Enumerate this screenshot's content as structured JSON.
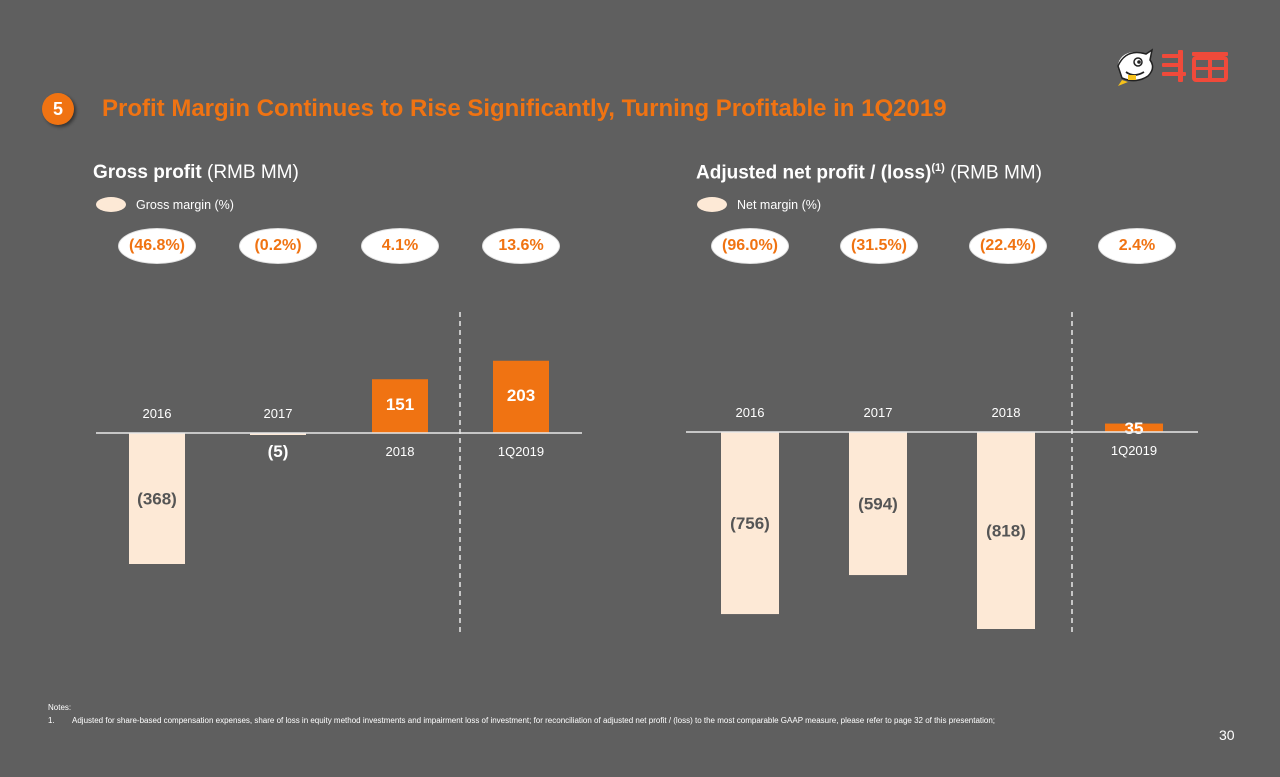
{
  "header": {
    "section_number": "5",
    "headline": "Profit Margin Continues to Rise Significantly, Turning Profitable in 1Q2019"
  },
  "colors": {
    "background": "#5f5f5f",
    "accent_orange": "#f07312",
    "negative_fill": "#fde9d6",
    "axis": "#e8e8e8"
  },
  "gross_panel": {
    "title_strong": "Gross profit",
    "title_unit": " (RMB MM)",
    "legend_label": "Gross margin (%)",
    "margins": [
      "(46.8%)",
      "(0.2%)",
      "4.1%",
      "13.6%"
    ]
  },
  "net_panel": {
    "title_strong": "Adjusted net profit / (loss)",
    "title_footnote": "(1)",
    "title_unit": " (RMB MM)",
    "legend_label": "Net margin (%)",
    "margins": [
      "(96.0%)",
      "(31.5%)",
      "(22.4%)",
      "2.4%"
    ]
  },
  "chart_data": [
    {
      "type": "bar",
      "title": "Gross profit (RMB MM)",
      "categories": [
        "2016",
        "2017",
        "2018",
        "1Q2019"
      ],
      "values": [
        -368,
        -5,
        151,
        203
      ],
      "value_labels": [
        "(368)",
        "(5)",
        "151",
        "203"
      ],
      "margins": [
        "(46.8%)",
        "(0.2%)",
        "4.1%",
        "13.6%"
      ],
      "divider_before": "1Q2019"
    },
    {
      "type": "bar",
      "title": "Adjusted net profit / (loss) (RMB MM)",
      "categories": [
        "2016",
        "2017",
        "2018",
        "1Q2019"
      ],
      "values": [
        -756,
        -594,
        -818,
        35
      ],
      "value_labels": [
        "(756)",
        "(594)",
        "(818)",
        "35"
      ],
      "margins": [
        "(96.0%)",
        "(31.5%)",
        "(22.4%)",
        "2.4%"
      ],
      "divider_before": "1Q2019"
    }
  ],
  "notes": {
    "label": "Notes:",
    "items": [
      {
        "number": "1.",
        "text": "Adjusted for share-based compensation expenses, share of loss in equity method investments and impairment loss of investment; for reconciliation of adjusted net profit / (loss) to the most comparable GAAP measure, please refer to page 32 of this presentation;"
      }
    ]
  },
  "page_number": "30",
  "logo": {
    "icon": "douyu-fish-logo-icon"
  }
}
